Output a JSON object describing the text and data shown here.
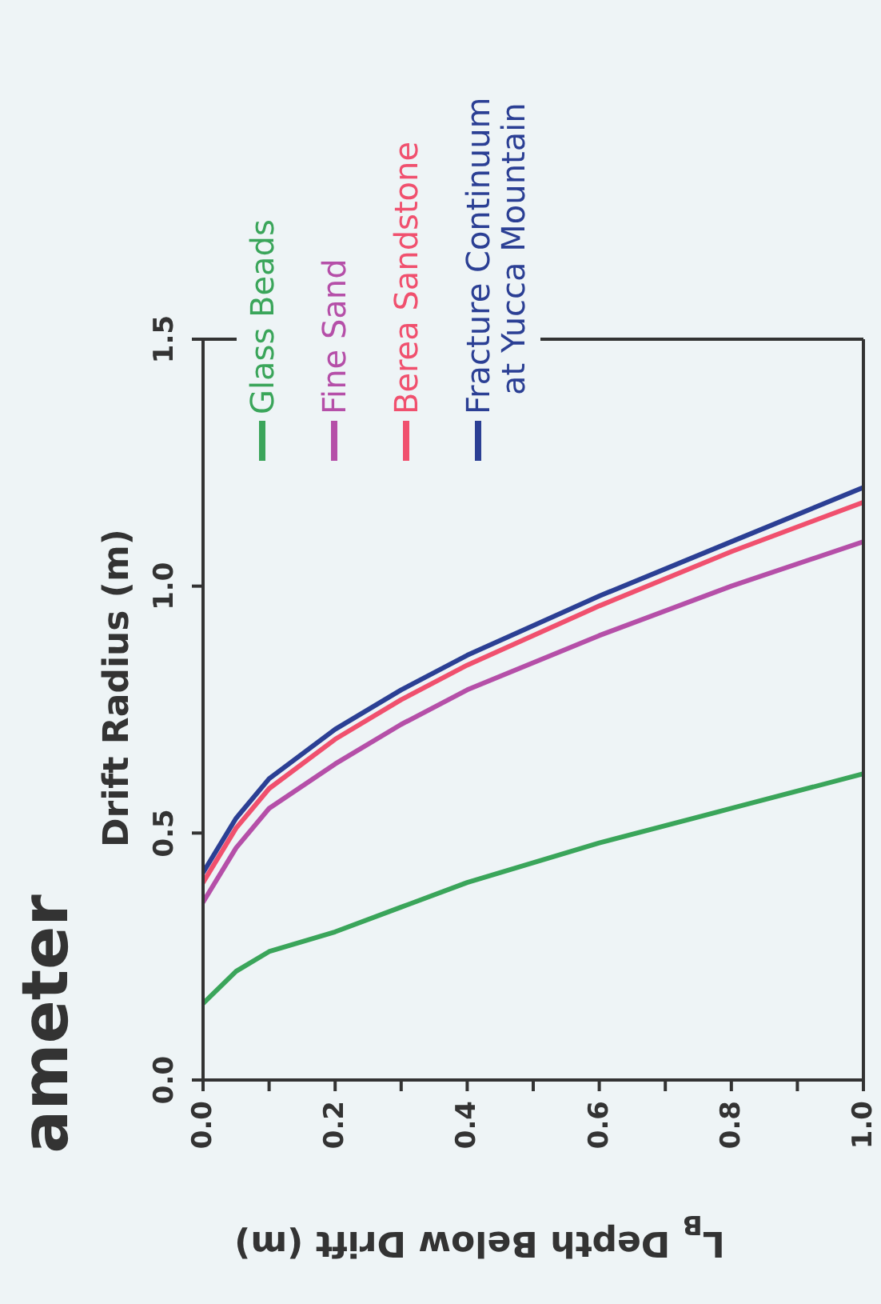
{
  "chart_data": {
    "type": "line",
    "title": "ameter",
    "xlabel": "L$_{B}$ Depth Below Drift (m)",
    "ylabel": "Drift Radius (m)",
    "x": [
      0,
      0.05,
      0.1,
      0.2,
      0.3,
      0.4,
      0.6,
      0.8,
      1.0
    ],
    "xlim": [
      0,
      1.0
    ],
    "xticks": [
      {
        "value": 0,
        "label": "0.0"
      },
      {
        "value": 0.1,
        "label": null
      },
      {
        "value": 0.2,
        "label": "0.2"
      },
      {
        "value": 0.3,
        "label": null
      },
      {
        "value": 0.4,
        "label": "0.4"
      },
      {
        "value": 0.5,
        "label": null
      },
      {
        "value": 0.6,
        "label": "0.6"
      },
      {
        "value": 0.7,
        "label": null
      },
      {
        "value": 0.8,
        "label": "0.8"
      },
      {
        "value": 0.9,
        "label": null
      },
      {
        "value": 1,
        "label": "1.0"
      }
    ],
    "ylim": [
      0,
      1.5
    ],
    "yticks": [
      {
        "value": 0,
        "label": "0.0"
      },
      {
        "value": 0.5,
        "label": "0.5"
      },
      {
        "value": 1,
        "label": "1.0"
      },
      {
        "value": 1.5,
        "label": "1.5"
      }
    ],
    "legend": "top left",
    "grid": false,
    "series": [
      {
        "name": "Glass Beads",
        "color": "#3aa55a",
        "values": [
          0.155,
          0.22,
          0.26,
          0.3,
          0.35,
          0.4,
          0.48,
          0.55,
          0.62
        ]
      },
      {
        "name": "Fine Sand",
        "color": "#b54fa8",
        "values": [
          0.36,
          0.47,
          0.55,
          0.64,
          0.72,
          0.79,
          0.9,
          1.0,
          1.09
        ]
      },
      {
        "name": "Berea Sandstone",
        "color": "#f0506e",
        "values": [
          0.4,
          0.51,
          0.59,
          0.69,
          0.77,
          0.84,
          0.96,
          1.07,
          1.17
        ]
      },
      {
        "name": "Fracture Continuum at Yucca Mountain",
        "color": "#2b3f94",
        "values": [
          0.42,
          0.53,
          0.61,
          0.71,
          0.79,
          0.86,
          0.98,
          1.09,
          1.2
        ]
      }
    ]
  }
}
